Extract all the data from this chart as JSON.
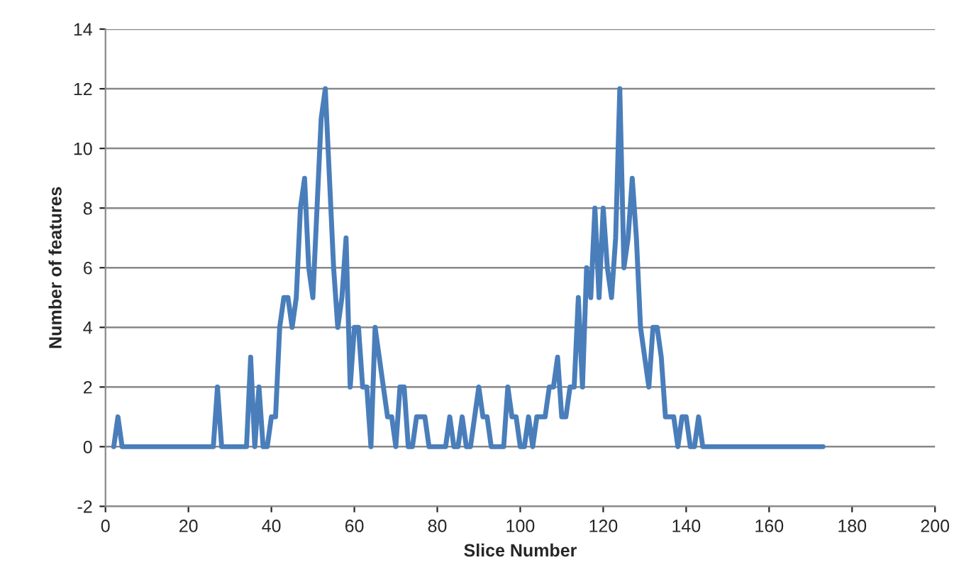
{
  "chart_data": {
    "type": "line",
    "xlabel": "Slice Number",
    "ylabel": "Number of features",
    "xlim": [
      0,
      200
    ],
    "xticks": [
      0,
      20,
      40,
      60,
      80,
      100,
      120,
      140,
      160,
      180,
      200
    ],
    "ylim": [
      -2,
      14
    ],
    "yticks": [
      -2,
      0,
      2,
      4,
      6,
      8,
      10,
      12,
      14
    ],
    "grid": "y",
    "marker": "none",
    "line_style": "solid",
    "series": [
      {
        "color": "#4a7ebb",
        "x": [
          2,
          3,
          4,
          26,
          27,
          28,
          34,
          35,
          36,
          37,
          38,
          39,
          40,
          41,
          42,
          43,
          44,
          45,
          46,
          47,
          48,
          49,
          50,
          51,
          52,
          53,
          54,
          55,
          56,
          57,
          58,
          59,
          60,
          61,
          62,
          63,
          64,
          65,
          66,
          67,
          68,
          69,
          70,
          71,
          72,
          73,
          74,
          75,
          76,
          77,
          78,
          82,
          83,
          84,
          85,
          86,
          87,
          88,
          89,
          90,
          91,
          92,
          93,
          96,
          97,
          98,
          99,
          100,
          101,
          102,
          103,
          104,
          105,
          106,
          107,
          108,
          109,
          110,
          111,
          112,
          113,
          114,
          115,
          116,
          117,
          118,
          119,
          120,
          121,
          122,
          123,
          124,
          125,
          126,
          127,
          128,
          129,
          130,
          131,
          132,
          133,
          134,
          135,
          136,
          137,
          138,
          139,
          140,
          141,
          142,
          143,
          144,
          173
        ],
        "values": [
          0,
          1,
          0,
          0,
          2,
          0,
          0,
          3,
          0,
          2,
          0,
          0,
          1,
          1,
          4,
          5,
          5,
          4,
          5,
          8,
          9,
          6,
          5,
          8,
          11,
          12,
          9,
          6,
          4,
          5,
          7,
          2,
          4,
          4,
          2,
          2,
          0,
          4,
          3,
          2,
          1,
          1,
          0,
          2,
          2,
          0,
          0,
          1,
          1,
          1,
          0,
          0,
          1,
          0,
          0,
          1,
          0,
          0,
          1,
          2,
          1,
          1,
          0,
          0,
          2,
          1,
          1,
          0,
          0,
          1,
          0,
          1,
          1,
          1,
          2,
          2,
          3,
          1,
          1,
          2,
          2,
          5,
          2,
          6,
          5,
          8,
          5,
          8,
          6,
          5,
          7,
          12,
          6,
          7,
          9,
          7,
          4,
          3,
          2,
          4,
          4,
          3,
          1,
          1,
          1,
          0,
          1,
          1,
          0,
          0,
          1,
          0,
          0
        ]
      }
    ]
  }
}
